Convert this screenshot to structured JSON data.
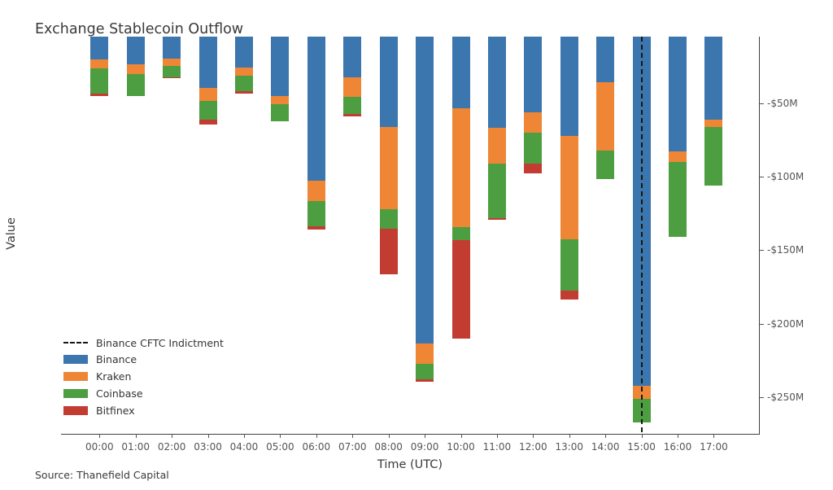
{
  "title": "Exchange Stablecoin Outflow",
  "source_note": "Source: Thanefield Capital",
  "chart_data": {
    "type": "bar",
    "stacked": true,
    "title": "Exchange Stablecoin Outflow",
    "xlabel": "Time (UTC)",
    "ylabel": "Value",
    "values_unit": "USD millions (outflows shown as negative)",
    "categories": [
      "00:00",
      "01:00",
      "02:00",
      "03:00",
      "04:00",
      "05:00",
      "06:00",
      "07:00",
      "08:00",
      "09:00",
      "10:00",
      "11:00",
      "12:00",
      "13:00",
      "14:00",
      "15:00",
      "16:00",
      "17:00"
    ],
    "series": [
      {
        "name": "Binance",
        "color": "#3B76AF",
        "values": [
          -20.0,
          -23.8,
          -19.5,
          -39.6,
          -26.0,
          -45.0,
          -102.5,
          -32.4,
          -66.2,
          -213.3,
          -53.7,
          -66.9,
          -56.4,
          -72.5,
          -35.6,
          -242.4,
          -82.7,
          -61.4
        ]
      },
      {
        "name": "Kraken",
        "color": "#EE8636",
        "values": [
          -6.5,
          -6.2,
          -5.0,
          -8.9,
          -5.5,
          -5.5,
          -13.9,
          -13.3,
          -55.8,
          -13.9,
          -80.6,
          -24.1,
          -13.5,
          -70.1,
          -46.7,
          -8.7,
          -7.3,
          -4.6
        ]
      },
      {
        "name": "Coinbase",
        "color": "#4D9E41",
        "values": [
          -17.0,
          -15.0,
          -8.0,
          -12.6,
          -10.2,
          -11.8,
          -17.5,
          -11.7,
          -13.2,
          -10.6,
          -9.1,
          -37.0,
          -21.2,
          -35.1,
          -19.4,
          -16.3,
          -50.8,
          -40.2
        ]
      },
      {
        "name": "Bitfinex",
        "color": "#C33C32",
        "values": [
          -1.8,
          0,
          -0.5,
          -3.7,
          -1.8,
          0,
          -1.9,
          -1.8,
          -31.0,
          -1.9,
          -66.8,
          -1.3,
          -6.5,
          -5.7,
          0,
          0,
          0,
          0
        ]
      }
    ],
    "y_ticks": [
      {
        "label": "-$50M",
        "value": -50
      },
      {
        "label": "-$100M",
        "value": -100
      },
      {
        "label": "-$150M",
        "value": -150
      },
      {
        "label": "-$200M",
        "value": -200
      },
      {
        "label": "-$250M",
        "value": -250
      }
    ],
    "ylim": [
      -275,
      -4.8
    ],
    "grid": false,
    "annotation_line": {
      "label": "Binance CFTC Indictment",
      "x": "15:00",
      "style": "dashed",
      "color": "#151515"
    },
    "legend": {
      "position": "lower left",
      "entries": [
        {
          "type": "dash",
          "label": "Binance CFTC Indictment",
          "color": "#151515"
        },
        {
          "type": "box",
          "label": "Binance",
          "color": "#3B76AF"
        },
        {
          "type": "box",
          "label": "Kraken",
          "color": "#EE8636"
        },
        {
          "type": "box",
          "label": "Coinbase",
          "color": "#4D9E41"
        },
        {
          "type": "box",
          "label": "Bitfinex",
          "color": "#C33C32"
        }
      ]
    }
  }
}
